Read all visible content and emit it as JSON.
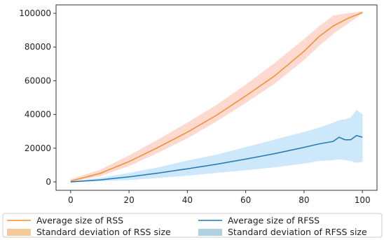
{
  "chart_data": {
    "type": "line",
    "title": "",
    "xlabel": "",
    "ylabel": "",
    "xlim": [
      -5,
      105
    ],
    "ylim": [
      -5000,
      105000
    ],
    "x_ticks": [
      "0",
      "20",
      "40",
      "60",
      "80",
      "100"
    ],
    "y_ticks": [
      "0",
      "20000",
      "40000",
      "60000",
      "80000",
      "100000"
    ],
    "grid": false,
    "legend_position": "bottom",
    "series": [
      {
        "name": "Average size of RSS",
        "color": "#f28e2b",
        "x": [
          0,
          10,
          20,
          30,
          40,
          50,
          60,
          70,
          80,
          85,
          90,
          95,
          100
        ],
        "y": [
          500,
          5000,
          12000,
          20500,
          29500,
          39500,
          51000,
          63000,
          77500,
          86000,
          92500,
          97000,
          100500
        ],
        "lower": [
          0,
          3500,
          9500,
          17500,
          26000,
          36000,
          47000,
          58500,
          72500,
          80500,
          88000,
          94000,
          100000
        ],
        "upper": [
          1500,
          7000,
          15500,
          25000,
          35000,
          45500,
          57500,
          70500,
          84500,
          92000,
          98500,
          100000,
          101000
        ]
      },
      {
        "name": "Average size of RFSS",
        "color": "#1f77b4",
        "x": [
          0,
          10,
          20,
          30,
          40,
          50,
          60,
          70,
          80,
          85,
          90,
          92,
          94,
          96,
          98,
          100
        ],
        "y": [
          0,
          1200,
          3000,
          5200,
          7800,
          10500,
          13500,
          16800,
          20500,
          22500,
          24000,
          26500,
          25000,
          25000,
          27500,
          26500
        ],
        "lower": [
          0,
          500,
          1200,
          2500,
          3800,
          5500,
          7000,
          8800,
          11000,
          12500,
          13000,
          13500,
          13000,
          12500,
          11500,
          12000
        ],
        "upper": [
          200,
          2200,
          5200,
          8500,
          12500,
          16000,
          20500,
          25000,
          29500,
          32000,
          35000,
          36500,
          37000,
          38000,
          42500,
          40000
        ]
      }
    ],
    "bands": [
      {
        "name": "Standard deviation of RSS size",
        "band_color": "#fdd9cf",
        "legend_color": "#f5c99a"
      },
      {
        "name": "Standard deviation of RFSS size",
        "band_color": "#cde7fb",
        "legend_color": "#afd2e3"
      }
    ]
  }
}
